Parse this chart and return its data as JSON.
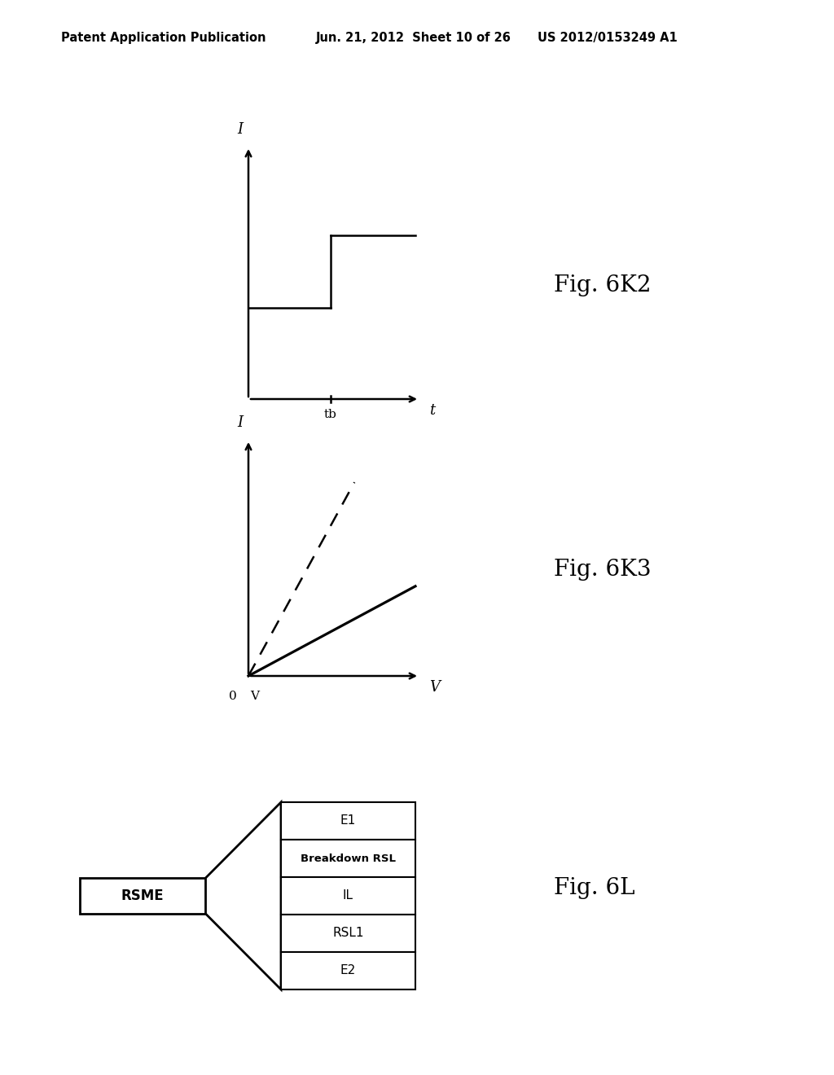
{
  "bg_color": "#ffffff",
  "header_left": "Patent Application Publication",
  "header_center": "Jun. 21, 2012  Sheet 10 of 26",
  "header_right": "US 2012/0153249 A1",
  "header_fontsize": 10.5,
  "fig6k2_label": "Fig. 6K2",
  "fig6k3_label": "Fig. 6K3",
  "fig6l_label": "Fig. 6L",
  "fig6l_layers": [
    "E1",
    "Breakdown RSL",
    "IL",
    "RSL1",
    "E2"
  ],
  "fig6l_rsme": "RSME"
}
